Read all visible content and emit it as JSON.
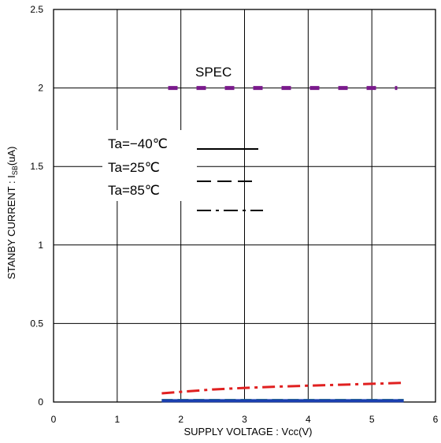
{
  "chart_data": {
    "type": "line",
    "xlabel": "SUPPLY VOLTAGE : Vcc(V)",
    "ylabel_main": "STANBY CURRENT : I",
    "ylabel_sub": "SB",
    "ylabel_unit": "(uA)",
    "xlim": [
      0,
      6
    ],
    "ylim": [
      0,
      2.5
    ],
    "x_ticks": [
      "0",
      "1",
      "2",
      "3",
      "4",
      "5",
      "6"
    ],
    "y_ticks": [
      "0",
      "0.5",
      "1",
      "1.5",
      "2",
      "2.5"
    ],
    "grid": true,
    "annotation": "SPEC",
    "spec": {
      "x": [
        1.8,
        5.4
      ],
      "y": 2.0,
      "color": "#7a1a8c"
    },
    "legend": [
      "Ta=−40℃",
      "Ta=25℃",
      "Ta=85℃"
    ],
    "series": [
      {
        "name": "Ta=−40℃",
        "color": "#1a3fb0",
        "x": [
          1.7,
          2.5,
          3.0,
          3.5,
          4.0,
          4.5,
          5.0,
          5.5
        ],
        "y": [
          0.008,
          0.008,
          0.008,
          0.008,
          0.008,
          0.008,
          0.008,
          0.008
        ]
      },
      {
        "name": "Ta=25℃",
        "color": "#1a9a3a",
        "x": [
          1.7,
          2.5,
          3.0,
          3.5,
          4.0,
          4.5,
          5.0,
          5.5
        ],
        "y": [
          0.012,
          0.012,
          0.012,
          0.012,
          0.012,
          0.012,
          0.012,
          0.012
        ]
      },
      {
        "name": "Ta=85℃",
        "color": "#e02020",
        "x": [
          1.7,
          2.0,
          2.5,
          3.0,
          3.5,
          4.0,
          4.5,
          5.0,
          5.5
        ],
        "y": [
          0.055,
          0.065,
          0.08,
          0.09,
          0.098,
          0.104,
          0.11,
          0.116,
          0.122
        ]
      }
    ]
  }
}
